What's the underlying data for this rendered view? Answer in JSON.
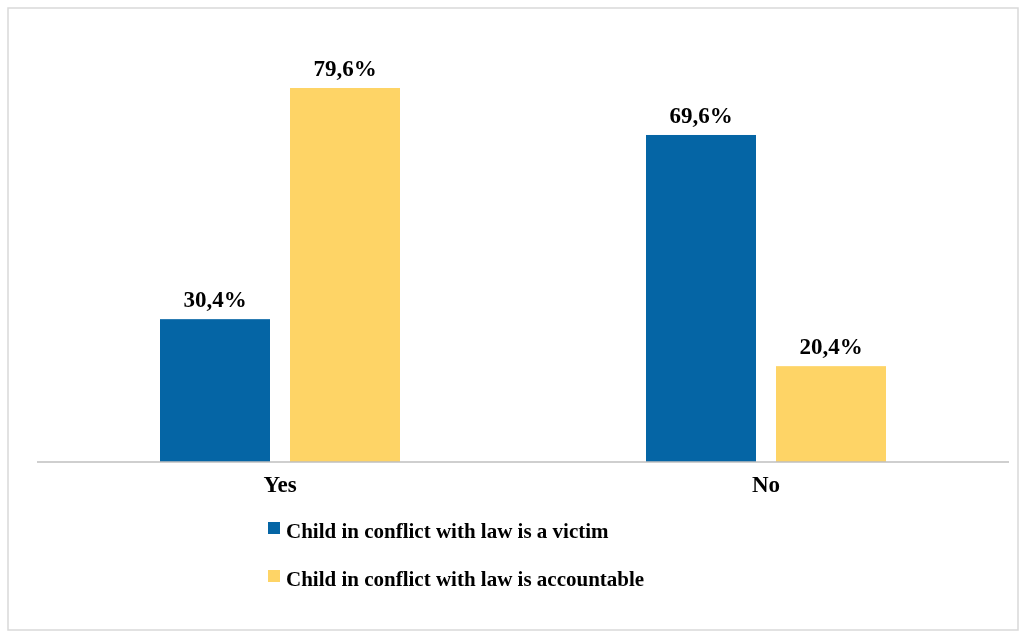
{
  "chart_data": {
    "type": "bar",
    "categories": [
      "Yes",
      "No"
    ],
    "series": [
      {
        "name": "Child in conflict with law is a victim",
        "color": "#0565a5",
        "values": [
          30.4,
          69.6
        ],
        "value_labels": [
          "30,4%",
          "69,6%"
        ]
      },
      {
        "name": "Child in conflict with law is accountable",
        "color": "#fed466",
        "values": [
          79.6,
          20.4
        ],
        "value_labels": [
          "79,6%",
          "20,4%"
        ]
      }
    ],
    "legend": "bottom"
  }
}
